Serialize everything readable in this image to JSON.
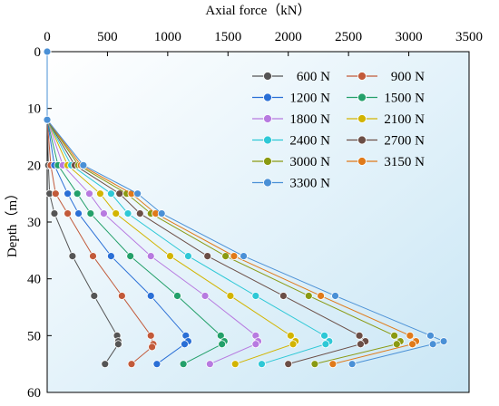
{
  "chart_data": {
    "type": "line",
    "xlabel": "Axial force（kN）",
    "ylabel": "Depth（m）",
    "xlim": [
      0,
      3500
    ],
    "ylim": [
      60,
      0
    ],
    "x_axis_position": "top",
    "y_axis_inverted": true,
    "xticks": [
      0,
      500,
      1000,
      1500,
      2000,
      2500,
      3000,
      3500
    ],
    "yticks": [
      0,
      10,
      20,
      30,
      40,
      50,
      60
    ],
    "legend": {
      "placement": "top-right",
      "columns": 2
    },
    "background_gradient": [
      "#ffffff",
      "#c9e6f5"
    ],
    "series": [
      {
        "name": "600 N",
        "color": "#555555",
        "points": [
          [
            0,
            0
          ],
          [
            0,
            12
          ],
          [
            10,
            20
          ],
          [
            20,
            25
          ],
          [
            60,
            28.5
          ],
          [
            210,
            36
          ],
          [
            390,
            43
          ],
          [
            580,
            50
          ],
          [
            590,
            51
          ],
          [
            590,
            51.5
          ],
          [
            480,
            55
          ]
        ]
      },
      {
        "name": "900 N",
        "color": "#c25a3a",
        "points": [
          [
            0,
            0
          ],
          [
            0,
            12
          ],
          [
            30,
            20
          ],
          [
            70,
            25
          ],
          [
            170,
            28.5
          ],
          [
            380,
            36
          ],
          [
            620,
            43
          ],
          [
            860,
            50
          ],
          [
            880,
            51.5
          ],
          [
            870,
            52
          ],
          [
            700,
            55
          ]
        ]
      },
      {
        "name": "1200 N",
        "color": "#2a6fd6",
        "points": [
          [
            0,
            0
          ],
          [
            0,
            12
          ],
          [
            60,
            20
          ],
          [
            170,
            25
          ],
          [
            260,
            28.5
          ],
          [
            530,
            36
          ],
          [
            860,
            43
          ],
          [
            1150,
            50
          ],
          [
            1170,
            51
          ],
          [
            1140,
            51.5
          ],
          [
            910,
            55
          ]
        ]
      },
      {
        "name": "1500 N",
        "color": "#23a06a",
        "points": [
          [
            0,
            0
          ],
          [
            0,
            12
          ],
          [
            90,
            20
          ],
          [
            250,
            25
          ],
          [
            360,
            28.5
          ],
          [
            690,
            36
          ],
          [
            1080,
            43
          ],
          [
            1440,
            50
          ],
          [
            1470,
            51
          ],
          [
            1450,
            51.5
          ],
          [
            1130,
            55
          ]
        ]
      },
      {
        "name": "1800 N",
        "color": "#b77ae0",
        "points": [
          [
            0,
            0
          ],
          [
            0,
            12
          ],
          [
            130,
            20
          ],
          [
            350,
            25
          ],
          [
            470,
            28.5
          ],
          [
            860,
            36
          ],
          [
            1310,
            43
          ],
          [
            1730,
            50
          ],
          [
            1750,
            51
          ],
          [
            1730,
            51.5
          ],
          [
            1350,
            55
          ]
        ]
      },
      {
        "name": "2100 N",
        "color": "#d2b400",
        "points": [
          [
            0,
            0
          ],
          [
            0,
            12
          ],
          [
            170,
            20
          ],
          [
            440,
            25
          ],
          [
            570,
            28.5
          ],
          [
            1020,
            36
          ],
          [
            1520,
            43
          ],
          [
            2020,
            50
          ],
          [
            2060,
            51
          ],
          [
            2040,
            51.5
          ],
          [
            1560,
            55
          ]
        ]
      },
      {
        "name": "2400 N",
        "color": "#2ec8d6",
        "points": [
          [
            0,
            0
          ],
          [
            0,
            12
          ],
          [
            200,
            20
          ],
          [
            530,
            25
          ],
          [
            670,
            28.5
          ],
          [
            1170,
            36
          ],
          [
            1730,
            43
          ],
          [
            2300,
            50
          ],
          [
            2340,
            51
          ],
          [
            2310,
            51.5
          ],
          [
            1780,
            55
          ]
        ]
      },
      {
        "name": "2700 N",
        "color": "#6b4e46",
        "points": [
          [
            0,
            0
          ],
          [
            0,
            12
          ],
          [
            230,
            20
          ],
          [
            600,
            25
          ],
          [
            770,
            28.5
          ],
          [
            1330,
            36
          ],
          [
            1960,
            43
          ],
          [
            2590,
            50
          ],
          [
            2640,
            51
          ],
          [
            2600,
            51.5
          ],
          [
            2000,
            55
          ]
        ]
      },
      {
        "name": "3000 N",
        "color": "#8a9a12",
        "points": [
          [
            0,
            0
          ],
          [
            0,
            12
          ],
          [
            260,
            20
          ],
          [
            660,
            25
          ],
          [
            860,
            28.5
          ],
          [
            1480,
            36
          ],
          [
            2170,
            43
          ],
          [
            2880,
            50
          ],
          [
            2930,
            51
          ],
          [
            2900,
            51.5
          ],
          [
            2220,
            55
          ]
        ]
      },
      {
        "name": "3150 N",
        "color": "#e07a1a",
        "points": [
          [
            0,
            0
          ],
          [
            0,
            12
          ],
          [
            280,
            20
          ],
          [
            700,
            25
          ],
          [
            900,
            28.5
          ],
          [
            1550,
            36
          ],
          [
            2270,
            43
          ],
          [
            3010,
            50
          ],
          [
            3060,
            51
          ],
          [
            3030,
            51.5
          ],
          [
            2370,
            55
          ]
        ]
      },
      {
        "name": "3300 N",
        "color": "#4a90d6",
        "points": [
          [
            0,
            0
          ],
          [
            0,
            12
          ],
          [
            300,
            20
          ],
          [
            750,
            25
          ],
          [
            950,
            28.5
          ],
          [
            1630,
            36
          ],
          [
            2390,
            43
          ],
          [
            3180,
            50
          ],
          [
            3290,
            51
          ],
          [
            3200,
            51.5
          ],
          [
            2530,
            55
          ]
        ]
      }
    ]
  }
}
